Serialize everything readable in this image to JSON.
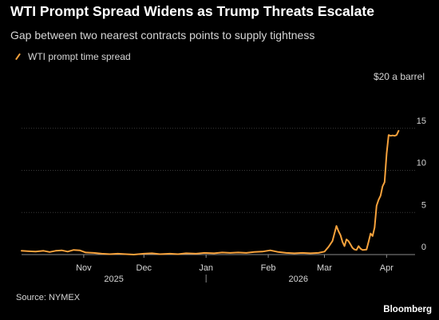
{
  "header": {
    "title": "WTI Prompt Spread Widens as Trump Threats Escalate",
    "subtitle": "Gap between two nearest contracts points to supply tightness"
  },
  "legend": {
    "label": "WTI prompt time spread"
  },
  "unit_label": "$20 a barrel",
  "footer": {
    "source": "Source: NYMEX",
    "brand": "Bloomberg"
  },
  "colors": {
    "line": "#f7a23c",
    "background": "#000000",
    "grid": "#3a3a3a",
    "text": "#d6d6d6"
  },
  "chart_data": {
    "type": "line",
    "ylim": [
      0,
      20
    ],
    "yticks": [
      0,
      5,
      10,
      15
    ],
    "xlim": [
      "2025-10-01",
      "2026-04-12"
    ],
    "month_ticks": [
      {
        "date": "2025-11-01",
        "label": "Nov"
      },
      {
        "date": "2025-12-01",
        "label": "Dec"
      },
      {
        "date": "2026-01-01",
        "label": "Jan"
      },
      {
        "date": "2026-02-01",
        "label": "Feb"
      },
      {
        "date": "2026-03-01",
        "label": "Mar"
      },
      {
        "date": "2026-04-01",
        "label": "Apr"
      }
    ],
    "year_labels": [
      {
        "date": "2025-11-16",
        "label": "2025"
      },
      {
        "date": "2026-02-16",
        "label": "2026"
      }
    ],
    "year_divider": "2026-01-01",
    "series": [
      {
        "name": "WTI prompt time spread",
        "points": [
          [
            "2025-10-01",
            0.45
          ],
          [
            "2025-10-04",
            0.4
          ],
          [
            "2025-10-08",
            0.35
          ],
          [
            "2025-10-12",
            0.45
          ],
          [
            "2025-10-15",
            0.3
          ],
          [
            "2025-10-18",
            0.45
          ],
          [
            "2025-10-21",
            0.5
          ],
          [
            "2025-10-24",
            0.35
          ],
          [
            "2025-10-27",
            0.55
          ],
          [
            "2025-10-30",
            0.5
          ],
          [
            "2025-11-02",
            0.25
          ],
          [
            "2025-11-06",
            0.2
          ],
          [
            "2025-11-10",
            0.1
          ],
          [
            "2025-11-14",
            0.05
          ],
          [
            "2025-11-18",
            0.1
          ],
          [
            "2025-11-22",
            0.05
          ],
          [
            "2025-11-26",
            0.0
          ],
          [
            "2025-12-01",
            0.1
          ],
          [
            "2025-12-05",
            0.15
          ],
          [
            "2025-12-09",
            0.05
          ],
          [
            "2025-12-14",
            0.1
          ],
          [
            "2025-12-18",
            0.05
          ],
          [
            "2025-12-22",
            0.15
          ],
          [
            "2025-12-27",
            0.1
          ],
          [
            "2025-12-31",
            0.2
          ],
          [
            "2026-01-05",
            0.15
          ],
          [
            "2026-01-09",
            0.25
          ],
          [
            "2026-01-13",
            0.2
          ],
          [
            "2026-01-17",
            0.25
          ],
          [
            "2026-01-21",
            0.2
          ],
          [
            "2026-01-25",
            0.3
          ],
          [
            "2026-01-29",
            0.35
          ],
          [
            "2026-02-02",
            0.5
          ],
          [
            "2026-02-06",
            0.3
          ],
          [
            "2026-02-10",
            0.2
          ],
          [
            "2026-02-14",
            0.15
          ],
          [
            "2026-02-18",
            0.2
          ],
          [
            "2026-02-22",
            0.15
          ],
          [
            "2026-02-26",
            0.2
          ],
          [
            "2026-03-01",
            0.35
          ],
          [
            "2026-03-03",
            0.9
          ],
          [
            "2026-03-05",
            1.6
          ],
          [
            "2026-03-06",
            2.5
          ],
          [
            "2026-03-07",
            3.4
          ],
          [
            "2026-03-08",
            2.8
          ],
          [
            "2026-03-09",
            2.3
          ],
          [
            "2026-03-10",
            1.5
          ],
          [
            "2026-03-11",
            1.0
          ],
          [
            "2026-03-12",
            1.8
          ],
          [
            "2026-03-13",
            1.6
          ],
          [
            "2026-03-14",
            1.2
          ],
          [
            "2026-03-15",
            0.8
          ],
          [
            "2026-03-16",
            0.6
          ],
          [
            "2026-03-17",
            0.55
          ],
          [
            "2026-03-18",
            1.0
          ],
          [
            "2026-03-19",
            0.7
          ],
          [
            "2026-03-20",
            0.55
          ],
          [
            "2026-03-22",
            0.6
          ],
          [
            "2026-03-23",
            1.5
          ],
          [
            "2026-03-24",
            2.5
          ],
          [
            "2026-03-25",
            2.2
          ],
          [
            "2026-03-26",
            3.2
          ],
          [
            "2026-03-27",
            5.8
          ],
          [
            "2026-03-28",
            6.5
          ],
          [
            "2026-03-29",
            7.0
          ],
          [
            "2026-03-30",
            8.1
          ],
          [
            "2026-03-31",
            8.6
          ],
          [
            "2026-04-01",
            12.0
          ],
          [
            "2026-04-02",
            14.2
          ],
          [
            "2026-04-03",
            14.1
          ],
          [
            "2026-04-04",
            14.15
          ],
          [
            "2026-04-05",
            14.1
          ],
          [
            "2026-04-06",
            14.2
          ],
          [
            "2026-04-07",
            14.7
          ]
        ]
      }
    ]
  }
}
